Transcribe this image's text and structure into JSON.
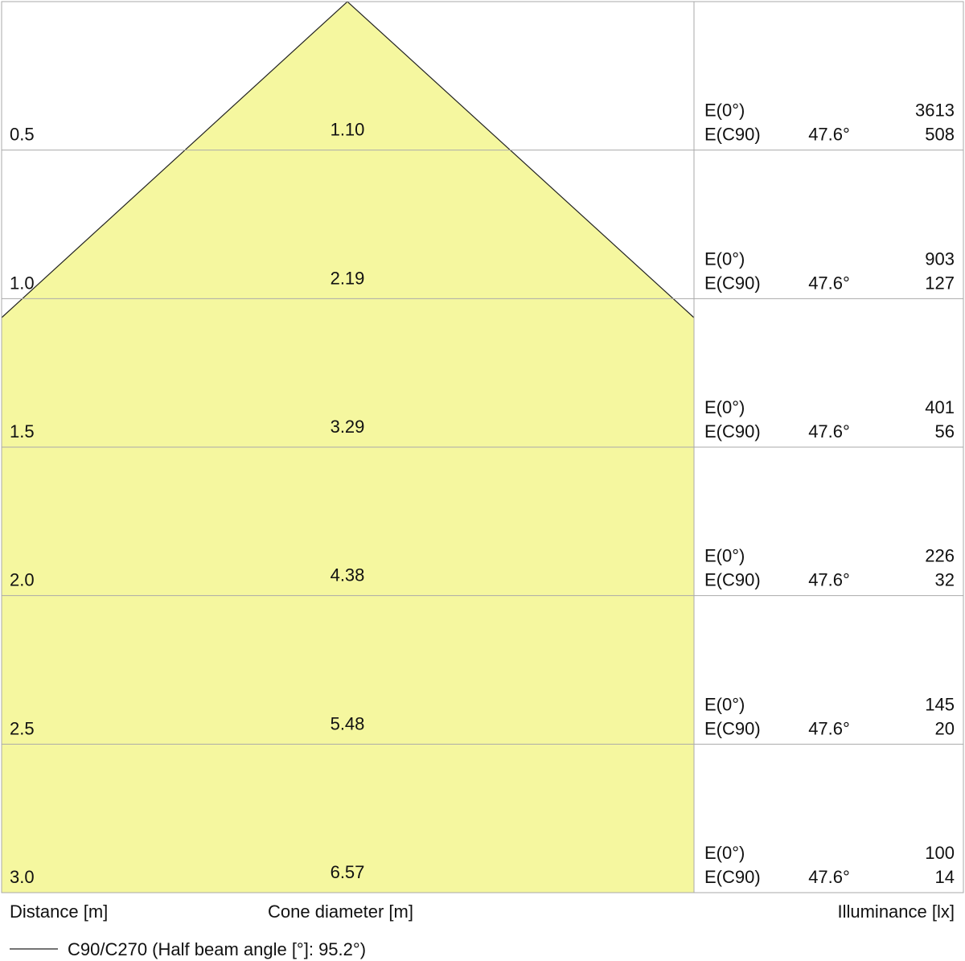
{
  "rows": [
    {
      "distance": "0.5",
      "diameter": "1.10",
      "e0_label": "E(0°)",
      "e0_value": "3613",
      "ec90_label": "E(C90)",
      "ec90_angle": "47.6°",
      "ec90_value": "508"
    },
    {
      "distance": "1.0",
      "diameter": "2.19",
      "e0_label": "E(0°)",
      "e0_value": "903",
      "ec90_label": "E(C90)",
      "ec90_angle": "47.6°",
      "ec90_value": "127"
    },
    {
      "distance": "1.5",
      "diameter": "3.29",
      "e0_label": "E(0°)",
      "e0_value": "401",
      "ec90_label": "E(C90)",
      "ec90_angle": "47.6°",
      "ec90_value": "56"
    },
    {
      "distance": "2.0",
      "diameter": "4.38",
      "e0_label": "E(0°)",
      "e0_value": "226",
      "ec90_label": "E(C90)",
      "ec90_angle": "47.6°",
      "ec90_value": "32"
    },
    {
      "distance": "2.5",
      "diameter": "5.48",
      "e0_label": "E(0°)",
      "e0_value": "145",
      "ec90_label": "E(C90)",
      "ec90_angle": "47.6°",
      "ec90_value": "20"
    },
    {
      "distance": "3.0",
      "diameter": "6.57",
      "e0_label": "E(0°)",
      "e0_value": "100",
      "ec90_label": "E(C90)",
      "ec90_angle": "47.6°",
      "ec90_value": "14"
    }
  ],
  "footer": {
    "distance_label": "Distance [m]",
    "diameter_label": "Cone diameter [m]",
    "illuminance_label": "Illuminance [lx]"
  },
  "legend": {
    "text": "C90/C270 (Half beam angle [°]: 95.2°)"
  }
}
